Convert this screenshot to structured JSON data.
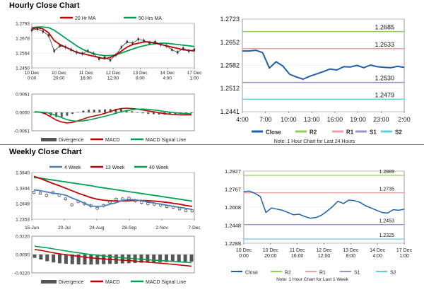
{
  "hourly_title": "Hourly Close Chart",
  "weekly_title": "Weekly Close Chart",
  "colors": {
    "ma20": "#c00000",
    "ma50": "#00a050",
    "wk4": "#4a7ebb",
    "wk13": "#c00000",
    "wk40": "#00a050",
    "close": "#1f5ea8",
    "r2": "#8fce56",
    "r1": "#e8a0a0",
    "s1": "#9b8fce",
    "s2": "#5fcde0",
    "macd": "#c00000",
    "signal": "#00a050",
    "divergence": "#555555"
  },
  "chart_data": [
    {
      "id": "hourly-price",
      "type": "line",
      "title": "Hourly Close Chart",
      "legend": [
        "20 Hr MA",
        "50 Hrs MA"
      ],
      "yticks": [
        "1.2793",
        "1.2678",
        "1.2564",
        "1.2450"
      ],
      "ylim": [
        1.245,
        1.2793
      ],
      "xticks": [
        [
          "10 Dec",
          "0:00"
        ],
        [
          "10 Dec",
          "20:00"
        ],
        [
          "11 Dec",
          "16:00"
        ],
        [
          "12 Dec",
          "12:00"
        ],
        [
          "13 Dec",
          "8:00"
        ],
        [
          "14 Dec",
          "4:00"
        ],
        [
          "17 Dec",
          "1:00"
        ]
      ],
      "series": [
        {
          "name": "Close",
          "values": [
            1.274,
            1.275,
            1.273,
            1.27,
            1.258,
            1.262,
            1.261,
            1.259,
            1.257,
            1.256,
            1.258,
            1.256,
            1.252,
            1.253,
            1.251,
            1.255,
            1.261,
            1.265,
            1.264,
            1.267,
            1.266,
            1.264,
            1.265,
            1.263,
            1.262,
            1.259,
            1.257,
            1.26,
            1.258,
            1.259
          ]
        },
        {
          "name": "20 Hr MA",
          "values": [
            1.275,
            1.276,
            1.275,
            1.272,
            1.266,
            1.263,
            1.261,
            1.259,
            1.257,
            1.256,
            1.255,
            1.254,
            1.253,
            1.252,
            1.253,
            1.255,
            1.258,
            1.261,
            1.263,
            1.264,
            1.265,
            1.265,
            1.264,
            1.263,
            1.262,
            1.261,
            1.26,
            1.259,
            1.2585,
            1.258
          ]
        },
        {
          "name": "50 Hrs MA",
          "values": [
            1.276,
            1.2765,
            1.2765,
            1.276,
            1.274,
            1.271,
            1.268,
            1.265,
            1.262,
            1.2595,
            1.2575,
            1.256,
            1.255,
            1.2545,
            1.2545,
            1.255,
            1.2565,
            1.258,
            1.2595,
            1.261,
            1.262,
            1.263,
            1.2635,
            1.264,
            1.264,
            1.2635,
            1.263,
            1.2625,
            1.262,
            1.2615
          ]
        }
      ]
    },
    {
      "id": "hourly-macd",
      "type": "line",
      "legend": [
        "Divergence",
        "MACD",
        "MACD Signal Line"
      ],
      "yticks": [
        "0.0061",
        "0.0000",
        "-0.0061"
      ],
      "ylim": [
        -0.0061,
        0.0061
      ],
      "series": [
        {
          "name": "MACD",
          "values": [
            0.0002,
            0.0001,
            -0.0005,
            -0.0015,
            -0.0025,
            -0.0032,
            -0.0035,
            -0.0033,
            -0.0028,
            -0.0022,
            -0.0016,
            -0.0012,
            -0.0008,
            -0.0003,
            0.0003,
            0.0009,
            0.0013,
            0.0014,
            0.0013,
            0.0011,
            0.0008,
            0.0005,
            0.0002,
            -0.0001,
            -0.0004,
            -0.0006,
            -0.0007,
            -0.0008,
            -0.0008,
            -0.0008
          ]
        },
        {
          "name": "MACD Signal Line",
          "values": [
            0.0001,
            0.0001,
            0.0,
            -0.0004,
            -0.001,
            -0.0017,
            -0.0024,
            -0.0028,
            -0.0029,
            -0.0028,
            -0.0025,
            -0.0021,
            -0.0017,
            -0.0013,
            -0.0008,
            -0.0003,
            0.0002,
            0.0006,
            0.0009,
            0.0011,
            0.0011,
            0.001,
            0.0008,
            0.0006,
            0.0003,
            0.0001,
            -0.0001,
            -0.0003,
            -0.0004,
            -0.0005
          ]
        },
        {
          "name": "Divergence",
          "values": [
            0.0001,
            0.0,
            -0.0005,
            -0.0011,
            -0.0015,
            -0.0015,
            -0.0011,
            -0.0005,
            0.0001,
            0.0006,
            0.0009,
            0.0009,
            0.0009,
            0.001,
            0.0011,
            0.0012,
            0.0011,
            0.0008,
            0.0004,
            0.0,
            -0.0003,
            -0.0005,
            -0.0006,
            -0.0007,
            -0.0007,
            -0.0007,
            -0.0006,
            -0.0005,
            -0.0004,
            -0.0003
          ]
        }
      ]
    },
    {
      "id": "hourly-pivot",
      "type": "line",
      "note": "Note: 1 Hour Chart for Last 24 Hours",
      "yticks": [
        "1.2723",
        "1.2652",
        "1.2582",
        "1.2512",
        "1.2441"
      ],
      "ylim": [
        1.2441,
        1.2723
      ],
      "xticks": [
        "4:00",
        "7:00",
        "10:00",
        "13:00",
        "16:00",
        "19:00",
        "23:00",
        "2:00"
      ],
      "legend": [
        "Close",
        "R2",
        "R1",
        "S1",
        "S2"
      ],
      "levels": [
        {
          "name": "R2",
          "value": 1.2685,
          "label": "1.2685"
        },
        {
          "name": "R1",
          "value": 1.2633,
          "label": "1.2633"
        },
        {
          "name": "S1",
          "value": 1.253,
          "label": "1.2530"
        },
        {
          "name": "S2",
          "value": 1.2479,
          "label": "1.2479"
        }
      ],
      "series": [
        {
          "name": "Close",
          "values": [
            1.2626,
            1.2626,
            1.2628,
            1.2621,
            1.2574,
            1.2593,
            1.258,
            1.2555,
            1.2547,
            1.254,
            1.2549,
            1.2556,
            1.2563,
            1.2571,
            1.2568,
            1.2578,
            1.2577,
            1.2582,
            1.2575,
            1.2583,
            1.2578,
            1.2576,
            1.2575,
            1.2579,
            1.2576
          ]
        }
      ]
    },
    {
      "id": "weekly-price",
      "type": "line",
      "title": "Weekly Close Chart",
      "legend": [
        "4 Week",
        "13 Week",
        "40 Week"
      ],
      "yticks": [
        "1.3840",
        "1.3344",
        "1.2849",
        "1.2353"
      ],
      "ylim": [
        1.2353,
        1.384
      ],
      "xticks": [
        "15-Jun",
        "20-Jul",
        "24-Aug",
        "28-Sep",
        "2-Nov",
        "7-Dec"
      ],
      "series": [
        {
          "name": "Close",
          "values": [
            1.321,
            1.318,
            1.311,
            1.32,
            1.312,
            1.3,
            1.281,
            1.292,
            1.285,
            1.278,
            1.27,
            1.279,
            1.29,
            1.299,
            1.3,
            1.302,
            1.294,
            1.289,
            1.285,
            1.283,
            1.28,
            1.275,
            1.273,
            1.268,
            1.262,
            1.262
          ]
        },
        {
          "name": "4 Week",
          "values": [
            1.329,
            1.326,
            1.322,
            1.318,
            1.316,
            1.312,
            1.303,
            1.295,
            1.286,
            1.277,
            1.276,
            1.277,
            1.283,
            1.288,
            1.295,
            1.298,
            1.297,
            1.294,
            1.29,
            1.287,
            1.283,
            1.28,
            1.276,
            1.273,
            1.27,
            1.266
          ]
        },
        {
          "name": "13 Week",
          "values": [
            1.372,
            1.365,
            1.357,
            1.349,
            1.342,
            1.334,
            1.326,
            1.318,
            1.311,
            1.304,
            1.299,
            1.296,
            1.294,
            1.293,
            1.293,
            1.294,
            1.295,
            1.295,
            1.294,
            1.293,
            1.291,
            1.289,
            1.286,
            1.283,
            1.279,
            1.276
          ]
        },
        {
          "name": "40 Week",
          "values": [
            1.368,
            1.366,
            1.363,
            1.36,
            1.357,
            1.354,
            1.351,
            1.348,
            1.345,
            1.342,
            1.338,
            1.335,
            1.332,
            1.329,
            1.326,
            1.323,
            1.32,
            1.317,
            1.314,
            1.311,
            1.308,
            1.305,
            1.302,
            1.299,
            1.296,
            1.293
          ]
        }
      ]
    },
    {
      "id": "weekly-macd",
      "type": "line",
      "legend": [
        "Divergence",
        "MACD",
        "MACD Signal Line"
      ],
      "yticks": [
        "0.0220",
        "0.0000",
        "-0.0220"
      ],
      "ylim": [
        -0.022,
        0.022
      ],
      "series": [
        {
          "name": "MACD",
          "values": [
            0.006,
            0.005,
            0.0035,
            0.002,
            0.0008,
            -0.0002,
            -0.0012,
            -0.0022,
            -0.0032,
            -0.004,
            -0.0047,
            -0.0053,
            -0.0058,
            -0.0063,
            -0.0068,
            -0.0073,
            -0.0079,
            -0.0085,
            -0.0091,
            -0.0097,
            -0.0103,
            -0.011,
            -0.0117,
            -0.0124,
            -0.0132,
            -0.014
          ]
        },
        {
          "name": "MACD Signal Line",
          "values": [
            0.01,
            0.009,
            0.008,
            0.0068,
            0.0055,
            0.0043,
            0.0031,
            0.002,
            0.001,
            0.0,
            -0.0009,
            -0.0017,
            -0.0025,
            -0.0032,
            -0.0039,
            -0.0045,
            -0.0051,
            -0.0057,
            -0.0062,
            -0.0067,
            -0.0072,
            -0.0077,
            -0.0082,
            -0.0087,
            -0.0092,
            -0.0097
          ]
        },
        {
          "name": "Divergence",
          "values": [
            -0.004,
            -0.006,
            -0.008,
            -0.0095,
            -0.0105,
            -0.011,
            -0.0115,
            -0.0118,
            -0.012,
            -0.012,
            -0.0118,
            -0.0115,
            -0.0112,
            -0.011,
            -0.0107,
            -0.0104,
            -0.0101,
            -0.0098,
            -0.0095,
            -0.0093,
            -0.0091,
            -0.009,
            -0.0089,
            -0.0088,
            -0.0087,
            -0.0086
          ]
        }
      ]
    },
    {
      "id": "weekly-pivot",
      "type": "line",
      "note": "Note: 1 Hour Chart for Last 1 Week",
      "yticks": [
        "1.2927",
        "1.2767",
        "1.2608",
        "1.2448",
        "1.2288"
      ],
      "ylim": [
        1.2288,
        1.2927
      ],
      "xticks": [
        [
          "10 Dec",
          "0:00"
        ],
        [
          "10 Dec",
          "20:00"
        ],
        [
          "11 Dec",
          "16:00"
        ],
        [
          "12 Dec",
          "12:00"
        ],
        [
          "13 Dec",
          "8:00"
        ],
        [
          "14 Dec",
          "4:00"
        ],
        [
          "17 Dec",
          "1:00"
        ]
      ],
      "legend": [
        "Close",
        "R2",
        "R1",
        "S1",
        "S2"
      ],
      "levels": [
        {
          "name": "R2",
          "value": 1.2889,
          "label": "1.2889"
        },
        {
          "name": "R1",
          "value": 1.2735,
          "label": "1.2735"
        },
        {
          "name": "S1",
          "value": 1.2453,
          "label": "1.2453"
        },
        {
          "name": "S2",
          "value": 1.2325,
          "label": "1.2325"
        }
      ],
      "series": [
        {
          "name": "Close",
          "values": [
            1.2745,
            1.275,
            1.273,
            1.27,
            1.256,
            1.26,
            1.259,
            1.258,
            1.256,
            1.254,
            1.2545,
            1.2525,
            1.251,
            1.2515,
            1.2535,
            1.257,
            1.261,
            1.266,
            1.264,
            1.267,
            1.2665,
            1.265,
            1.262,
            1.26,
            1.258,
            1.256,
            1.2555,
            1.2585,
            1.258,
            1.259
          ]
        }
      ]
    }
  ]
}
